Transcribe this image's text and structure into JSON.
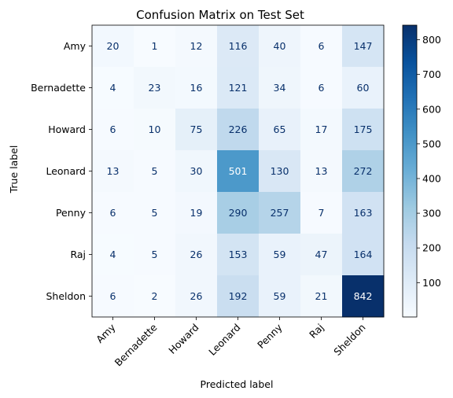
{
  "chart_data": {
    "type": "heatmap",
    "title": "Confusion Matrix on Test Set",
    "xlabel": "Predicted label",
    "ylabel": "True label",
    "x_categories": [
      "Amy",
      "Bernadette",
      "Howard",
      "Leonard",
      "Penny",
      "Raj",
      "Sheldon"
    ],
    "y_categories": [
      "Amy",
      "Bernadette",
      "Howard",
      "Leonard",
      "Penny",
      "Raj",
      "Sheldon"
    ],
    "matrix": [
      [
        20,
        1,
        12,
        116,
        40,
        6,
        147
      ],
      [
        4,
        23,
        16,
        121,
        34,
        6,
        60
      ],
      [
        6,
        10,
        75,
        226,
        65,
        17,
        175
      ],
      [
        13,
        5,
        30,
        501,
        130,
        13,
        272
      ],
      [
        6,
        5,
        19,
        290,
        257,
        7,
        163
      ],
      [
        4,
        5,
        26,
        153,
        59,
        47,
        164
      ],
      [
        6,
        2,
        26,
        192,
        59,
        21,
        842
      ]
    ],
    "colormap": "Blues",
    "colorbar": {
      "min": 1,
      "max": 842,
      "ticks": [
        100,
        200,
        300,
        400,
        500,
        600,
        700,
        800
      ]
    },
    "grid": false
  }
}
